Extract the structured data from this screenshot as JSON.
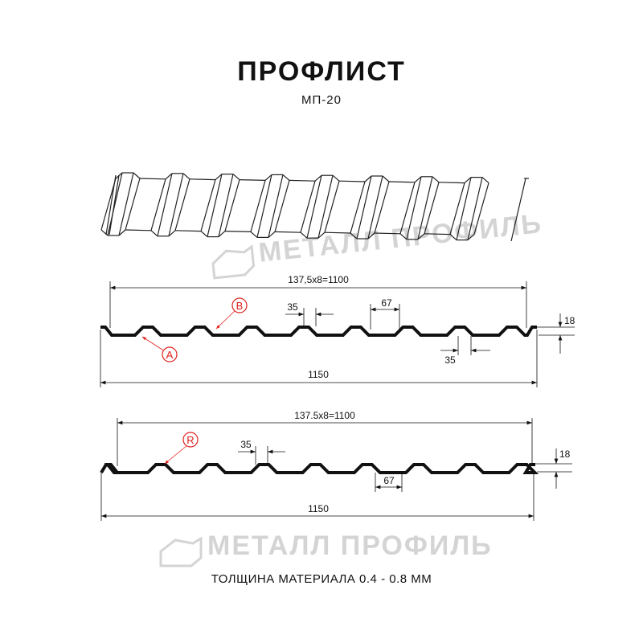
{
  "title": "ПРОФЛИСТ",
  "subtitle": "МП-20",
  "footer": "ТОЛЩИНА МАТЕРИАЛА 0.4 - 0.8 ММ",
  "watermark": "МЕТАЛЛ ПРОФИЛЬ",
  "colors": {
    "profile": "#111111",
    "callout": "#e0201b",
    "watermark": "#d4d4d4"
  },
  "profile_a": {
    "pitch_label": "137,5x8=1100",
    "total_width": "1150",
    "rib_top": "35",
    "rib_pitch": "67",
    "rib_bottom": "35",
    "height": "18",
    "callouts": [
      "A",
      "B"
    ]
  },
  "profile_b": {
    "pitch_label": "137.5x8=1100",
    "total_width": "1150",
    "rib_top": "35",
    "rib_bottom": "67",
    "height": "18",
    "callouts": [
      "R"
    ]
  }
}
